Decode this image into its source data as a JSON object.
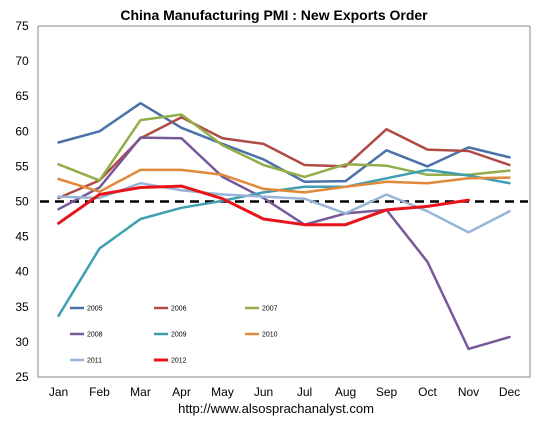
{
  "chart_data": {
    "type": "line",
    "title": "China Manufacturing PMI : New Exports Order",
    "source": "http://www.alsosprachanalyst.com",
    "categories": [
      "Jan",
      "Feb",
      "Mar",
      "Apr",
      "May",
      "Jun",
      "Jul",
      "Aug",
      "Sep",
      "Oct",
      "Nov",
      "Dec"
    ],
    "ylim": [
      25,
      75
    ],
    "yticks": [
      "25",
      "30",
      "35",
      "40",
      "45",
      "50",
      "55",
      "60",
      "65",
      "70",
      "75"
    ],
    "reference_line": 50,
    "grid": false,
    "legend_position": "lower-left",
    "series": [
      {
        "name": "2005",
        "color": "#4a72a8",
        "width": 2.5,
        "values": [
          58.4,
          60.0,
          64.0,
          60.5,
          58.2,
          56.0,
          52.8,
          52.9,
          57.3,
          55.0,
          57.7,
          56.3
        ]
      },
      {
        "name": "2006",
        "color": "#b04a45",
        "width": 2.5,
        "values": [
          50.5,
          53.0,
          59.0,
          62.0,
          59.0,
          58.2,
          55.2,
          55.0,
          60.3,
          57.4,
          57.2,
          55.2
        ]
      },
      {
        "name": "2007",
        "color": "#92ad4a",
        "width": 2.5,
        "values": [
          55.3,
          53.0,
          61.6,
          62.4,
          58.0,
          55.2,
          53.5,
          55.3,
          55.1,
          53.8,
          53.8,
          54.4
        ]
      },
      {
        "name": "2008",
        "color": "#77589a",
        "width": 2.5,
        "values": [
          48.9,
          52.0,
          59.1,
          59.0,
          53.5,
          50.5,
          46.7,
          48.3,
          48.8,
          41.4,
          29.0,
          30.7
        ]
      },
      {
        "name": "2009",
        "color": "#3f9eb1",
        "width": 2.5,
        "values": [
          33.7,
          43.3,
          47.5,
          49.1,
          50.1,
          51.3,
          52.1,
          52.1,
          53.3,
          54.5,
          53.7,
          52.6
        ]
      },
      {
        "name": "2010",
        "color": "#e1893b",
        "width": 2.5,
        "values": [
          53.2,
          51.4,
          54.5,
          54.5,
          53.8,
          51.8,
          51.3,
          52.1,
          52.8,
          52.6,
          53.3,
          53.4
        ]
      },
      {
        "name": "2011",
        "color": "#98b4d6",
        "width": 2.5,
        "values": [
          50.7,
          50.5,
          52.6,
          51.6,
          51.0,
          50.7,
          50.4,
          48.3,
          51.0,
          48.6,
          45.6,
          48.6
        ]
      },
      {
        "name": "2012",
        "color": "#e8141c",
        "width": 3,
        "values": [
          46.9,
          51.0,
          52.0,
          52.2,
          50.4,
          47.5,
          46.7,
          46.7,
          48.8,
          49.3,
          50.2,
          null
        ]
      }
    ]
  }
}
